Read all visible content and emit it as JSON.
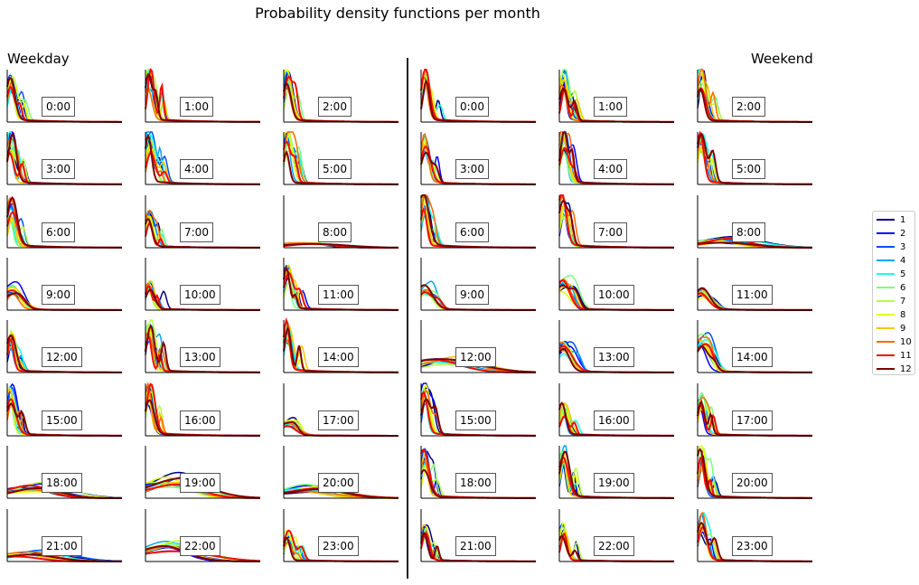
{
  "chart_data": {
    "type": "line",
    "title": "Probability density functions per month",
    "groups": [
      "Weekday",
      "Weekend"
    ],
    "hours": [
      "0:00",
      "1:00",
      "2:00",
      "3:00",
      "4:00",
      "5:00",
      "6:00",
      "7:00",
      "8:00",
      "9:00",
      "10:00",
      "11:00",
      "12:00",
      "13:00",
      "14:00",
      "15:00",
      "16:00",
      "17:00",
      "18:00",
      "19:00",
      "20:00",
      "21:00",
      "22:00",
      "23:00"
    ],
    "legend": {
      "position": "right",
      "entries": [
        "1",
        "2",
        "3",
        "4",
        "5",
        "6",
        "7",
        "8",
        "9",
        "10",
        "11",
        "12"
      ],
      "colors": [
        "#00007f",
        "#0000ff",
        "#0050ff",
        "#00a4ff",
        "#19ffe6",
        "#7dff7a",
        "#b5ff41",
        "#e4ff13",
        "#ffc400",
        "#ff6800",
        "#f50b00",
        "#7f0000"
      ]
    },
    "grid": false,
    "axes_visible": "x-baseline and y-spine only, no ticks",
    "panel_peak_shape": {
      "weekday": [
        {
          "hour": "0:00",
          "peak": 1.0,
          "width": "narrow"
        },
        {
          "hour": "1:00",
          "peak": 1.0,
          "width": "narrow"
        },
        {
          "hour": "2:00",
          "peak": 1.0,
          "width": "narrow"
        },
        {
          "hour": "3:00",
          "peak": 1.0,
          "width": "narrow"
        },
        {
          "hour": "4:00",
          "peak": 1.0,
          "width": "narrow"
        },
        {
          "hour": "5:00",
          "peak": 1.0,
          "width": "narrow"
        },
        {
          "hour": "6:00",
          "peak": 0.95,
          "width": "narrow"
        },
        {
          "hour": "7:00",
          "peak": 0.7,
          "width": "narrow"
        },
        {
          "hour": "8:00",
          "peak": 0.1,
          "width": "broad"
        },
        {
          "hour": "9:00",
          "peak": 0.45,
          "width": "medium"
        },
        {
          "hour": "10:00",
          "peak": 0.55,
          "width": "narrow"
        },
        {
          "hour": "11:00",
          "peak": 0.9,
          "width": "narrow"
        },
        {
          "hour": "12:00",
          "peak": 0.75,
          "width": "narrow"
        },
        {
          "hour": "13:00",
          "peak": 1.0,
          "width": "narrow"
        },
        {
          "hour": "14:00",
          "peak": 0.95,
          "width": "narrow"
        },
        {
          "hour": "15:00",
          "peak": 1.0,
          "width": "narrow"
        },
        {
          "hour": "16:00",
          "peak": 1.0,
          "width": "narrow"
        },
        {
          "hour": "17:00",
          "peak": 0.3,
          "width": "medium"
        },
        {
          "hour": "18:00",
          "peak": 0.2,
          "width": "broad"
        },
        {
          "hour": "19:00",
          "peak": 0.3,
          "width": "broad"
        },
        {
          "hour": "20:00",
          "peak": 0.2,
          "width": "broad"
        },
        {
          "hour": "21:00",
          "peak": 0.15,
          "width": "broad"
        },
        {
          "hour": "22:00",
          "peak": 0.3,
          "width": "broad"
        },
        {
          "hour": "23:00",
          "peak": 0.6,
          "width": "narrow"
        }
      ],
      "weekend": [
        {
          "hour": "0:00",
          "peak": 1.0,
          "width": "narrow"
        },
        {
          "hour": "1:00",
          "peak": 1.0,
          "width": "narrow"
        },
        {
          "hour": "2:00",
          "peak": 1.0,
          "width": "narrow"
        },
        {
          "hour": "3:00",
          "peak": 1.0,
          "width": "narrow"
        },
        {
          "hour": "4:00",
          "peak": 1.0,
          "width": "narrow"
        },
        {
          "hour": "5:00",
          "peak": 0.95,
          "width": "narrow"
        },
        {
          "hour": "6:00",
          "peak": 1.0,
          "width": "narrow"
        },
        {
          "hour": "7:00",
          "peak": 1.0,
          "width": "narrow"
        },
        {
          "hour": "8:00",
          "peak": 0.15,
          "width": "broad"
        },
        {
          "hour": "9:00",
          "peak": 0.45,
          "width": "medium"
        },
        {
          "hour": "10:00",
          "peak": 0.55,
          "width": "medium"
        },
        {
          "hour": "11:00",
          "peak": 0.4,
          "width": "medium"
        },
        {
          "hour": "12:00",
          "peak": 0.25,
          "width": "broad"
        },
        {
          "hour": "13:00",
          "peak": 0.6,
          "width": "medium"
        },
        {
          "hour": "14:00",
          "peak": 0.65,
          "width": "medium"
        },
        {
          "hour": "15:00",
          "peak": 1.0,
          "width": "narrow"
        },
        {
          "hour": "16:00",
          "peak": 0.6,
          "width": "narrow"
        },
        {
          "hour": "17:00",
          "peak": 0.85,
          "width": "narrow"
        },
        {
          "hour": "18:00",
          "peak": 0.9,
          "width": "narrow"
        },
        {
          "hour": "19:00",
          "peak": 1.0,
          "width": "narrow"
        },
        {
          "hour": "20:00",
          "peak": 0.95,
          "width": "narrow"
        },
        {
          "hour": "21:00",
          "peak": 0.7,
          "width": "narrow"
        },
        {
          "hour": "22:00",
          "peak": 0.75,
          "width": "narrow"
        },
        {
          "hour": "23:00",
          "peak": 0.9,
          "width": "narrow"
        }
      ]
    }
  }
}
